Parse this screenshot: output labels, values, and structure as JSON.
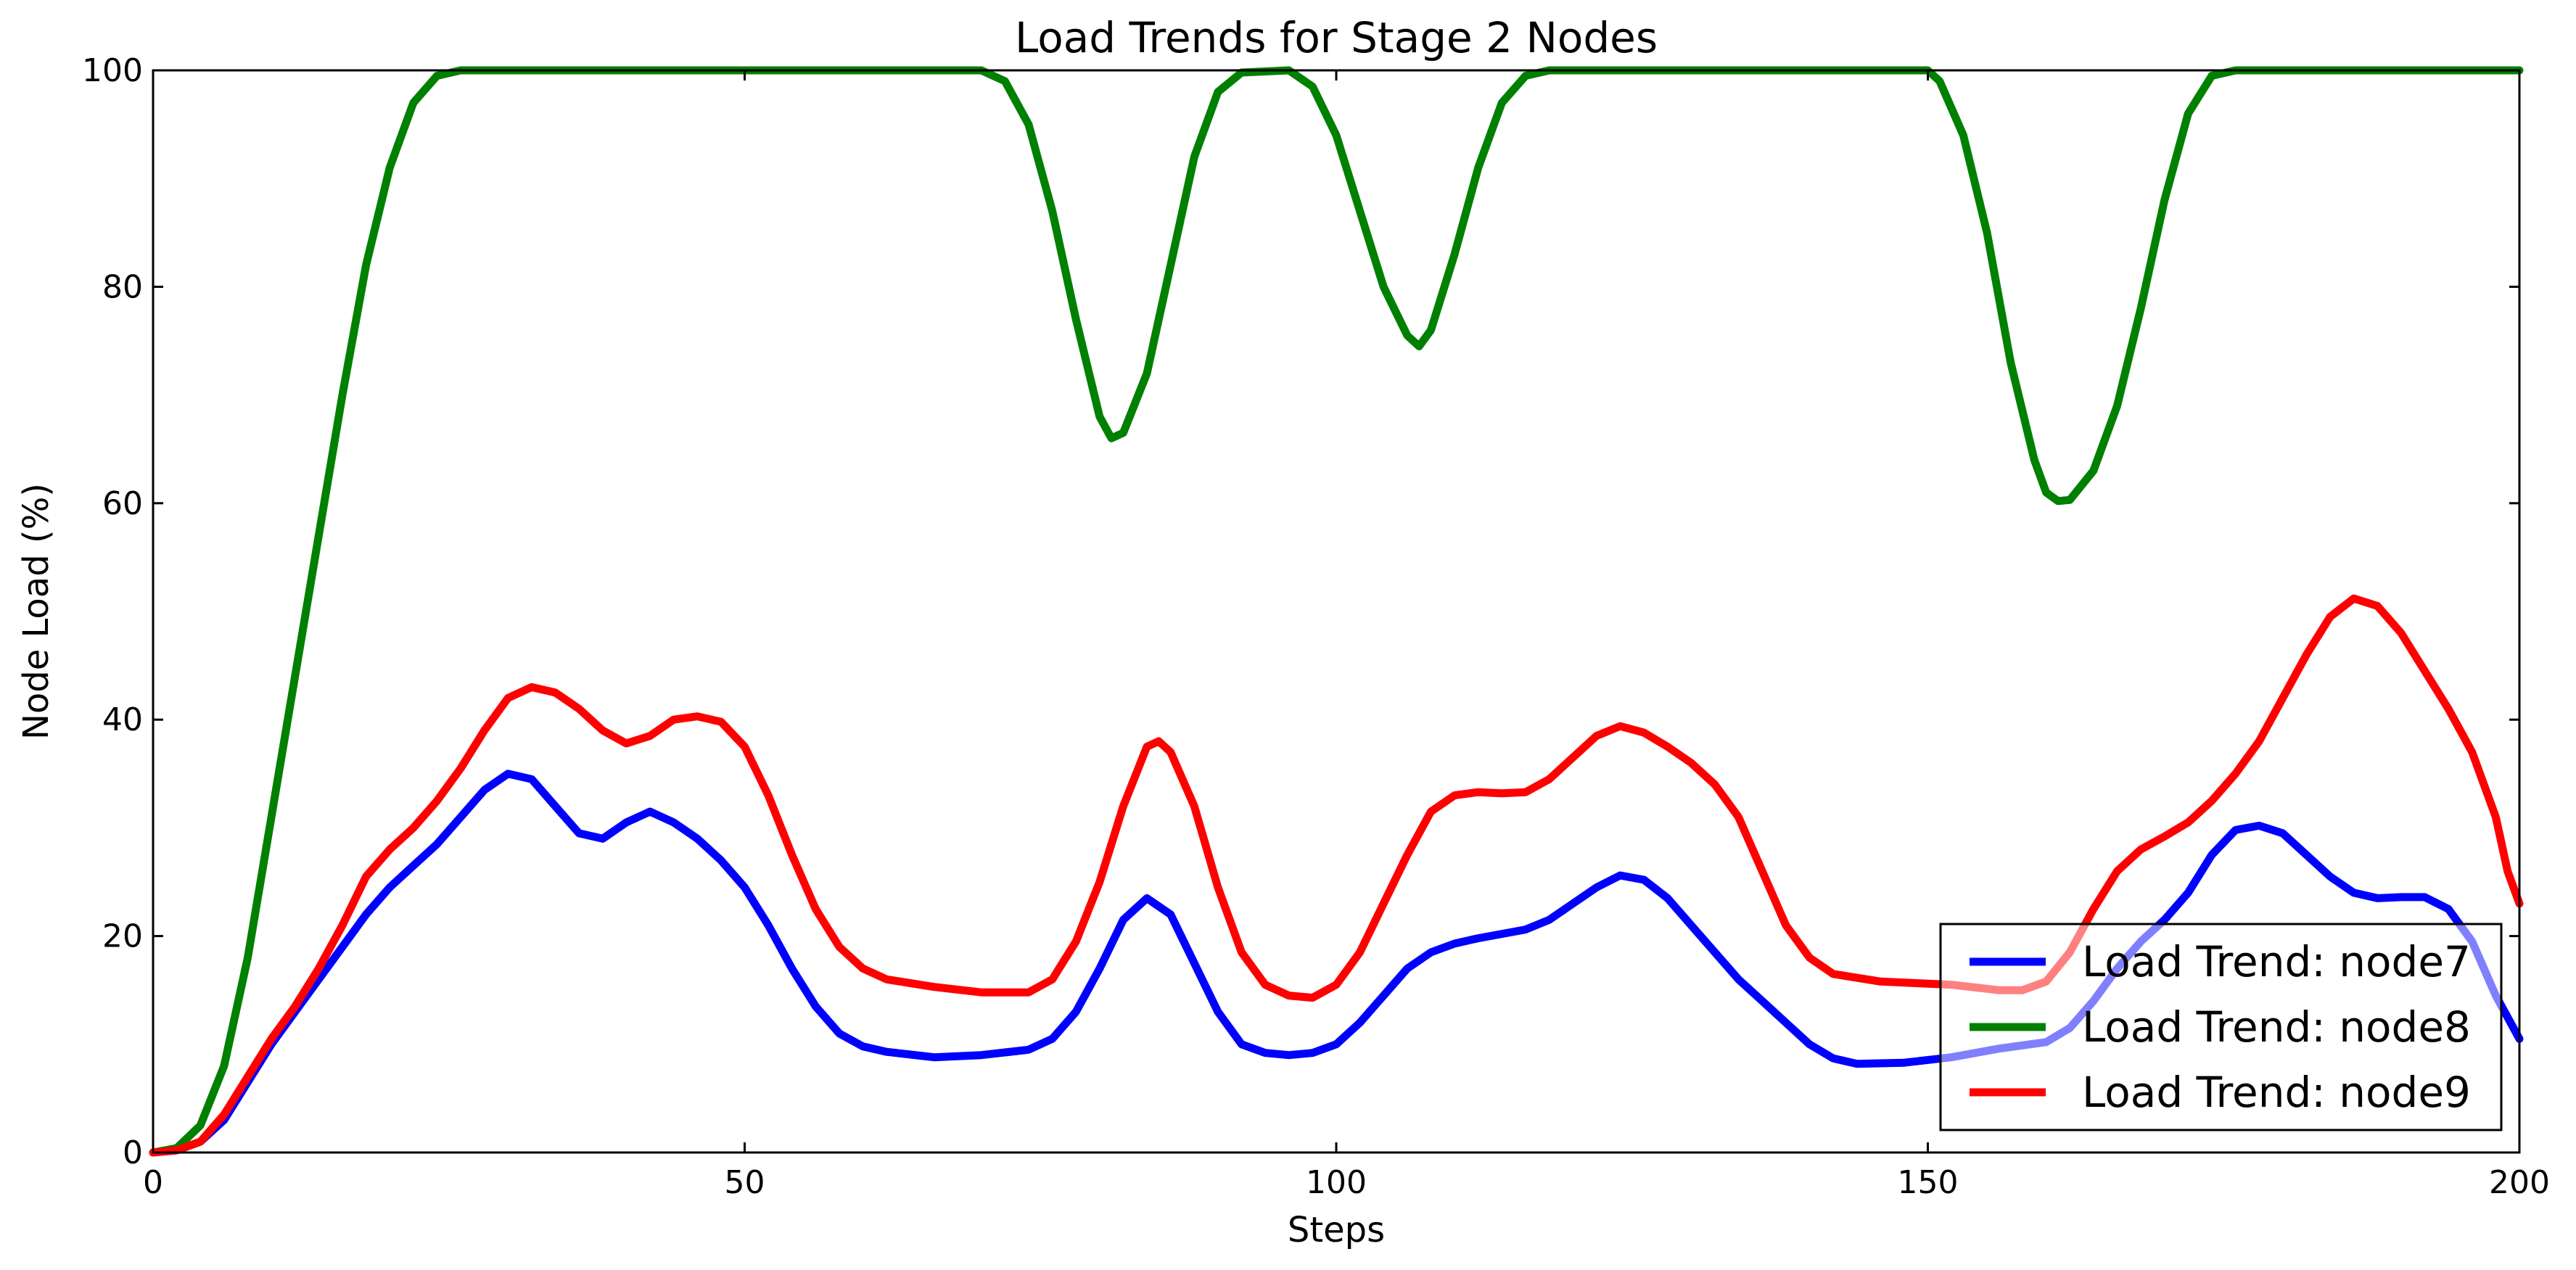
{
  "chart_data": {
    "type": "line",
    "title": "Load Trends for Stage 2 Nodes",
    "xlabel": "Steps",
    "ylabel": "Node Load (%)",
    "xlim": [
      0,
      200
    ],
    "ylim": [
      0,
      100
    ],
    "xticks": [
      0,
      50,
      100,
      150,
      200
    ],
    "yticks": [
      0,
      20,
      40,
      60,
      80,
      100
    ],
    "grid": false,
    "legend_position": "lower-right",
    "series": [
      {
        "name": "Load Trend: node7",
        "color": "#0000ff",
        "points": [
          [
            0,
            0
          ],
          [
            2,
            0.2
          ],
          [
            4,
            1
          ],
          [
            6,
            3
          ],
          [
            8,
            6.5
          ],
          [
            10,
            10
          ],
          [
            12,
            13
          ],
          [
            14,
            16
          ],
          [
            16,
            19
          ],
          [
            18,
            22
          ],
          [
            20,
            24.5
          ],
          [
            22,
            26.5
          ],
          [
            24,
            28.5
          ],
          [
            26,
            31
          ],
          [
            28,
            33.5
          ],
          [
            30,
            35
          ],
          [
            32,
            34.5
          ],
          [
            34,
            32
          ],
          [
            36,
            29.5
          ],
          [
            38,
            29
          ],
          [
            40,
            30.5
          ],
          [
            42,
            31.5
          ],
          [
            44,
            30.5
          ],
          [
            46,
            29
          ],
          [
            48,
            27
          ],
          [
            50,
            24.5
          ],
          [
            52,
            21
          ],
          [
            54,
            17
          ],
          [
            56,
            13.5
          ],
          [
            58,
            11
          ],
          [
            60,
            9.8
          ],
          [
            62,
            9.3
          ],
          [
            66,
            8.8
          ],
          [
            70,
            9
          ],
          [
            74,
            9.5
          ],
          [
            76,
            10.5
          ],
          [
            78,
            13
          ],
          [
            80,
            17
          ],
          [
            82,
            21.5
          ],
          [
            84,
            23.5
          ],
          [
            86,
            22
          ],
          [
            88,
            17.5
          ],
          [
            90,
            13
          ],
          [
            92,
            10
          ],
          [
            94,
            9.2
          ],
          [
            96,
            9
          ],
          [
            98,
            9.2
          ],
          [
            100,
            10
          ],
          [
            102,
            12
          ],
          [
            104,
            14.5
          ],
          [
            106,
            17
          ],
          [
            108,
            18.5
          ],
          [
            110,
            19.3
          ],
          [
            112,
            19.8
          ],
          [
            114,
            20.2
          ],
          [
            116,
            20.6
          ],
          [
            118,
            21.5
          ],
          [
            120,
            23
          ],
          [
            122,
            24.5
          ],
          [
            124,
            25.6
          ],
          [
            126,
            25.2
          ],
          [
            128,
            23.5
          ],
          [
            130,
            21
          ],
          [
            132,
            18.5
          ],
          [
            134,
            16
          ],
          [
            136,
            14
          ],
          [
            138,
            12
          ],
          [
            140,
            10
          ],
          [
            142,
            8.7
          ],
          [
            144,
            8.2
          ],
          [
            148,
            8.3
          ],
          [
            152,
            8.8
          ],
          [
            156,
            9.6
          ],
          [
            160,
            10.2
          ],
          [
            162,
            11.5
          ],
          [
            164,
            14
          ],
          [
            166,
            17
          ],
          [
            168,
            19.5
          ],
          [
            170,
            21.5
          ],
          [
            172,
            24
          ],
          [
            174,
            27.5
          ],
          [
            176,
            29.8
          ],
          [
            178,
            30.2
          ],
          [
            180,
            29.5
          ],
          [
            182,
            27.5
          ],
          [
            184,
            25.5
          ],
          [
            186,
            24
          ],
          [
            188,
            23.5
          ],
          [
            190,
            23.6
          ],
          [
            192,
            23.6
          ],
          [
            194,
            22.5
          ],
          [
            196,
            19.5
          ],
          [
            198,
            14.5
          ],
          [
            200,
            10.5
          ]
        ]
      },
      {
        "name": "Load Trend: node8",
        "color": "#008000",
        "points": [
          [
            0,
            0
          ],
          [
            2,
            0.4
          ],
          [
            4,
            2.5
          ],
          [
            6,
            8
          ],
          [
            8,
            18
          ],
          [
            10,
            31
          ],
          [
            12,
            44
          ],
          [
            14,
            57
          ],
          [
            16,
            70
          ],
          [
            18,
            82
          ],
          [
            20,
            91
          ],
          [
            22,
            97
          ],
          [
            24,
            99.5
          ],
          [
            26,
            100
          ],
          [
            70,
            100
          ],
          [
            72,
            99
          ],
          [
            74,
            95
          ],
          [
            76,
            87
          ],
          [
            78,
            77
          ],
          [
            80,
            68
          ],
          [
            81,
            66
          ],
          [
            82,
            66.5
          ],
          [
            84,
            72
          ],
          [
            86,
            82
          ],
          [
            88,
            92
          ],
          [
            90,
            98
          ],
          [
            92,
            99.8
          ],
          [
            96,
            100
          ],
          [
            98,
            98.5
          ],
          [
            100,
            94
          ],
          [
            102,
            87
          ],
          [
            104,
            80
          ],
          [
            106,
            75.5
          ],
          [
            107,
            74.5
          ],
          [
            108,
            76
          ],
          [
            110,
            83
          ],
          [
            112,
            91
          ],
          [
            114,
            97
          ],
          [
            116,
            99.5
          ],
          [
            118,
            100
          ],
          [
            150,
            100
          ],
          [
            151,
            99
          ],
          [
            153,
            94
          ],
          [
            155,
            85
          ],
          [
            157,
            73
          ],
          [
            159,
            64
          ],
          [
            160,
            61
          ],
          [
            161,
            60.2
          ],
          [
            162,
            60.3
          ],
          [
            164,
            63
          ],
          [
            166,
            69
          ],
          [
            168,
            78
          ],
          [
            170,
            88
          ],
          [
            172,
            96
          ],
          [
            174,
            99.5
          ],
          [
            176,
            100
          ],
          [
            200,
            100
          ]
        ]
      },
      {
        "name": "Load Trend: node9",
        "color": "#ff0000",
        "points": [
          [
            0,
            0
          ],
          [
            2,
            0.2
          ],
          [
            4,
            1
          ],
          [
            6,
            3.5
          ],
          [
            8,
            7
          ],
          [
            10,
            10.5
          ],
          [
            12,
            13.5
          ],
          [
            14,
            17
          ],
          [
            16,
            21
          ],
          [
            18,
            25.5
          ],
          [
            20,
            28
          ],
          [
            22,
            30
          ],
          [
            24,
            32.5
          ],
          [
            26,
            35.5
          ],
          [
            28,
            39
          ],
          [
            30,
            42
          ],
          [
            32,
            43
          ],
          [
            34,
            42.5
          ],
          [
            36,
            41
          ],
          [
            38,
            39
          ],
          [
            40,
            37.8
          ],
          [
            42,
            38.5
          ],
          [
            44,
            40
          ],
          [
            46,
            40.3
          ],
          [
            48,
            39.8
          ],
          [
            50,
            37.5
          ],
          [
            52,
            33
          ],
          [
            54,
            27.5
          ],
          [
            56,
            22.5
          ],
          [
            58,
            19
          ],
          [
            60,
            17
          ],
          [
            62,
            16
          ],
          [
            66,
            15.3
          ],
          [
            70,
            14.8
          ],
          [
            74,
            14.8
          ],
          [
            76,
            16
          ],
          [
            78,
            19.5
          ],
          [
            80,
            25
          ],
          [
            82,
            32
          ],
          [
            84,
            37.5
          ],
          [
            85,
            38
          ],
          [
            86,
            37
          ],
          [
            88,
            32
          ],
          [
            90,
            24.5
          ],
          [
            92,
            18.5
          ],
          [
            94,
            15.5
          ],
          [
            96,
            14.5
          ],
          [
            98,
            14.3
          ],
          [
            100,
            15.5
          ],
          [
            102,
            18.5
          ],
          [
            104,
            23
          ],
          [
            106,
            27.5
          ],
          [
            108,
            31.5
          ],
          [
            110,
            33
          ],
          [
            112,
            33.3
          ],
          [
            114,
            33.2
          ],
          [
            116,
            33.3
          ],
          [
            118,
            34.5
          ],
          [
            120,
            36.5
          ],
          [
            122,
            38.5
          ],
          [
            124,
            39.4
          ],
          [
            126,
            38.8
          ],
          [
            128,
            37.5
          ],
          [
            130,
            36
          ],
          [
            132,
            34
          ],
          [
            134,
            31
          ],
          [
            136,
            26
          ],
          [
            138,
            21
          ],
          [
            140,
            18
          ],
          [
            142,
            16.5
          ],
          [
            146,
            15.8
          ],
          [
            150,
            15.6
          ],
          [
            152,
            15.5
          ],
          [
            156,
            15
          ],
          [
            158,
            15
          ],
          [
            160,
            15.8
          ],
          [
            162,
            18.5
          ],
          [
            164,
            22.5
          ],
          [
            166,
            26
          ],
          [
            168,
            28
          ],
          [
            170,
            29.2
          ],
          [
            172,
            30.5
          ],
          [
            174,
            32.5
          ],
          [
            176,
            35
          ],
          [
            178,
            38
          ],
          [
            180,
            42
          ],
          [
            182,
            46
          ],
          [
            184,
            49.5
          ],
          [
            186,
            51.2
          ],
          [
            188,
            50.5
          ],
          [
            190,
            48
          ],
          [
            192,
            44.5
          ],
          [
            194,
            41
          ],
          [
            196,
            37
          ],
          [
            198,
            31
          ],
          [
            199,
            26
          ],
          [
            200,
            23
          ]
        ]
      }
    ]
  }
}
